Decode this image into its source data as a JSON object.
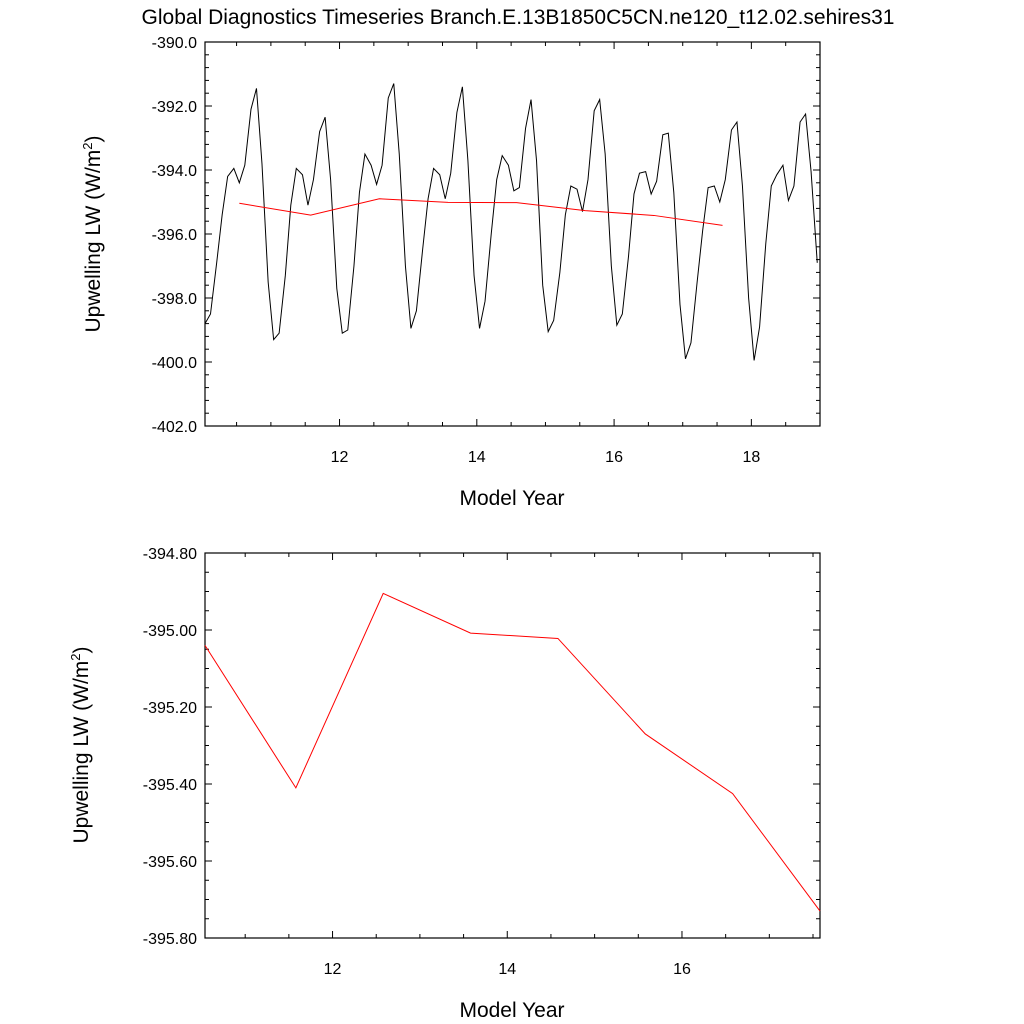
{
  "title": "Global Diagnostics Timeseries Branch.E.13B1850C5CN.ne120_t12.02.sehires31",
  "colors": {
    "monthly_line": "#000000",
    "annual_line": "#ff0000",
    "background": "#ffffff"
  },
  "chart_data": [
    {
      "type": "line",
      "xlabel": "Model Year",
      "ylabel": "Upwelling LW (W/m²)",
      "ylabel_base": "Upwelling LW (W/m",
      "ylabel_sup": "2",
      "ylabel_close": ")",
      "xlim": [
        10.04,
        19.0
      ],
      "ylim": [
        -402.0,
        -390.0
      ],
      "xticks": [
        12,
        14,
        16,
        18
      ],
      "xtick_labels": [
        "12",
        "14",
        "16",
        "18"
      ],
      "yticks": [
        -390,
        -392,
        -394,
        -396,
        -398,
        -400,
        -402
      ],
      "ytick_labels": [
        "-390.0",
        "-392.0",
        "-394.0",
        "-396.0",
        "-398.0",
        "-400.0",
        "-402.0"
      ],
      "grid": false,
      "series": [
        {
          "color": "#000000",
          "x": [
            10.04,
            10.12,
            10.21,
            10.29,
            10.37,
            10.46,
            10.54,
            10.62,
            10.71,
            10.79,
            10.87,
            10.96,
            11.04,
            11.12,
            11.21,
            11.29,
            11.37,
            11.46,
            11.54,
            11.62,
            11.71,
            11.79,
            11.87,
            11.96,
            12.04,
            12.12,
            12.21,
            12.29,
            12.37,
            12.46,
            12.54,
            12.62,
            12.71,
            12.79,
            12.87,
            12.96,
            13.04,
            13.12,
            13.21,
            13.29,
            13.37,
            13.46,
            13.54,
            13.62,
            13.71,
            13.79,
            13.87,
            13.96,
            14.04,
            14.12,
            14.21,
            14.29,
            14.37,
            14.46,
            14.54,
            14.62,
            14.71,
            14.79,
            14.87,
            14.96,
            15.04,
            15.12,
            15.21,
            15.29,
            15.37,
            15.46,
            15.54,
            15.62,
            15.71,
            15.79,
            15.87,
            15.96,
            16.04,
            16.12,
            16.21,
            16.29,
            16.37,
            16.46,
            16.54,
            16.62,
            16.71,
            16.79,
            16.87,
            16.96,
            17.04,
            17.12,
            17.21,
            17.29,
            17.37,
            17.46,
            17.54,
            17.62,
            17.71,
            17.79,
            17.87,
            17.96,
            18.04,
            18.12,
            18.21,
            18.29,
            18.37,
            18.46,
            18.54,
            18.62,
            18.71,
            18.79,
            18.87,
            18.96
          ],
          "y": [
            -398.8,
            -398.5,
            -396.9,
            -395.4,
            -394.2,
            -393.95,
            -394.4,
            -393.85,
            -392.1,
            -391.45,
            -393.8,
            -397.5,
            -399.3,
            -399.1,
            -397.3,
            -395.1,
            -393.95,
            -394.15,
            -395.1,
            -394.3,
            -392.8,
            -392.35,
            -394.3,
            -397.7,
            -399.1,
            -399.0,
            -397.0,
            -394.7,
            -393.5,
            -393.85,
            -394.45,
            -393.85,
            -391.75,
            -391.3,
            -393.5,
            -397.0,
            -398.95,
            -398.4,
            -396.5,
            -394.9,
            -393.95,
            -394.15,
            -394.9,
            -394.1,
            -392.2,
            -391.4,
            -393.7,
            -397.3,
            -398.95,
            -398.1,
            -396.0,
            -394.3,
            -393.55,
            -393.85,
            -394.65,
            -394.55,
            -392.7,
            -391.8,
            -393.7,
            -397.6,
            -399.05,
            -398.7,
            -397.2,
            -395.4,
            -394.5,
            -394.6,
            -395.3,
            -394.3,
            -392.15,
            -391.8,
            -393.5,
            -397.0,
            -398.85,
            -398.5,
            -396.7,
            -394.75,
            -394.1,
            -394.05,
            -394.75,
            -394.35,
            -392.9,
            -392.85,
            -394.7,
            -398.2,
            -399.9,
            -399.4,
            -397.5,
            -395.9,
            -394.55,
            -394.5,
            -395.0,
            -394.3,
            -392.75,
            -392.5,
            -394.5,
            -398.0,
            -399.95,
            -398.9,
            -396.3,
            -394.5,
            -394.15,
            -393.85,
            -394.95,
            -394.5,
            -392.5,
            -392.25,
            -394.05,
            -396.9
          ]
        },
        {
          "color": "#ff0000",
          "x": [
            10.54,
            11.58,
            12.58,
            13.58,
            14.58,
            15.58,
            16.58,
            17.58
          ],
          "y": [
            -395.04,
            -395.41,
            -394.9,
            -395.01,
            -395.02,
            -395.27,
            -395.42,
            -395.73
          ]
        }
      ]
    },
    {
      "type": "line",
      "xlabel": "Model Year",
      "ylabel": "Upwelling LW (W/m²)",
      "ylabel_base": "Upwelling LW (W/m",
      "ylabel_sup": "2",
      "ylabel_close": ")",
      "xlim": [
        10.54,
        17.58
      ],
      "ylim": [
        -395.8,
        -394.8
      ],
      "xticks": [
        12,
        14,
        16
      ],
      "xtick_labels": [
        "12",
        "14",
        "16"
      ],
      "yticks": [
        -394.8,
        -395.0,
        -395.2,
        -395.4,
        -395.6,
        -395.8
      ],
      "ytick_labels": [
        "-394.80",
        "-395.00",
        "-395.20",
        "-395.40",
        "-395.60",
        "-395.80"
      ],
      "grid": false,
      "series": [
        {
          "color": "#ff0000",
          "x": [
            10.54,
            11.58,
            12.58,
            13.58,
            14.58,
            15.58,
            16.58,
            17.58
          ],
          "y": [
            -395.04,
            -395.41,
            -394.905,
            -395.008,
            -395.022,
            -395.27,
            -395.425,
            -395.73
          ]
        }
      ]
    }
  ]
}
